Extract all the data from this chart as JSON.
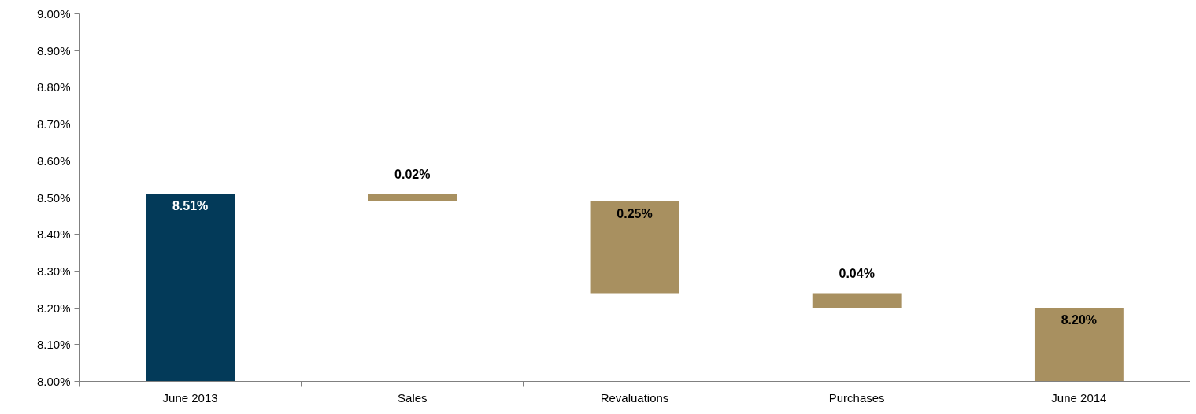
{
  "chart_data": {
    "type": "bar",
    "categories": [
      "June 2013",
      "Sales",
      "Revaluations",
      "Purchases",
      "June 2014"
    ],
    "base": [
      8.0,
      8.49,
      8.24,
      8.2,
      8.0
    ],
    "values": [
      0.51,
      0.02,
      0.25,
      0.04,
      0.2
    ],
    "colors": [
      "#033a59",
      "#a89060",
      "#a89060",
      "#a89060",
      "#a89060"
    ],
    "value_labels": [
      "8.51%",
      "0.02%",
      "0.25%",
      "0.04%",
      "8.20%"
    ],
    "ylim": [
      8.0,
      9.0
    ],
    "yticks": [
      {
        "value": 8.0,
        "label": "8.00%"
      },
      {
        "value": 8.1,
        "label": "8.10%"
      },
      {
        "value": 8.2,
        "label": "8.20%"
      },
      {
        "value": 8.3,
        "label": "8.30%"
      },
      {
        "value": 8.4,
        "label": "8.40%"
      },
      {
        "value": 8.5,
        "label": "8.50%"
      },
      {
        "value": 8.6,
        "label": "8.60%"
      },
      {
        "value": 8.7,
        "label": "8.70%"
      },
      {
        "value": 8.8,
        "label": "8.80%"
      },
      {
        "value": 8.9,
        "label": "8.90%"
      },
      {
        "value": 9.0,
        "label": "9.00%"
      }
    ],
    "grid": false
  }
}
